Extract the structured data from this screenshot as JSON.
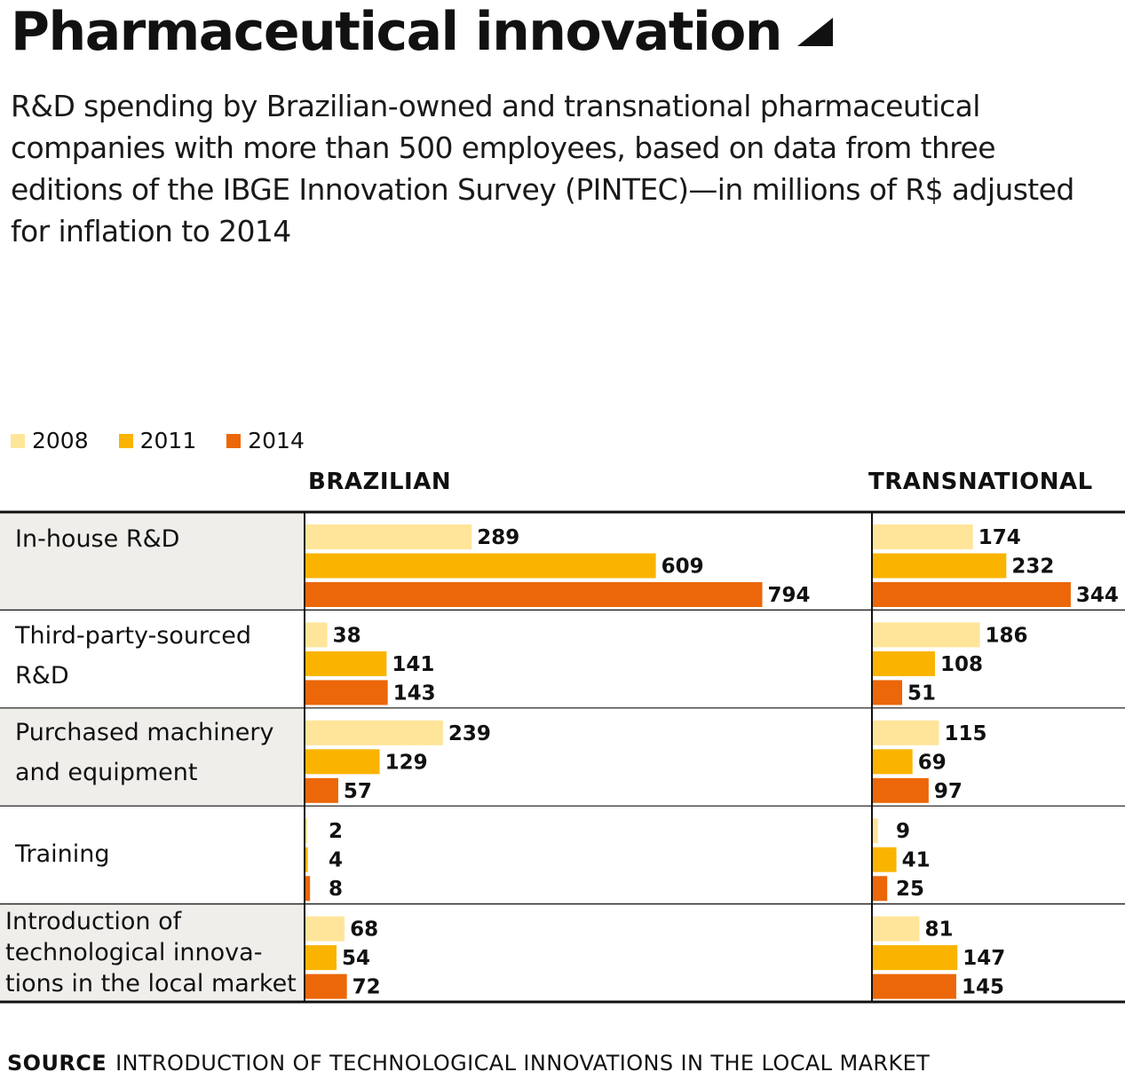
{
  "header": {
    "title": "Pharmaceutical innovation",
    "subtitle": "R&D spending by Brazilian-owned and transnational pharmaceutical companies with more than 500 employees, based on data from three editions of the IBGE Innovation Survey (PINTEC)—in millions of R$ adjusted for inflation to 2014"
  },
  "legend": [
    {
      "label": "2008",
      "color": "#FFE59A"
    },
    {
      "label": "2011",
      "color": "#FAB400"
    },
    {
      "label": "2014",
      "color": "#EB6709"
    }
  ],
  "groups": {
    "brazilian": "BRAZILIAN",
    "transnational": "TRANSNATIONAL"
  },
  "rows": [
    {
      "label": "In-house R&D"
    },
    {
      "label": "Third-party-sourced R&D"
    },
    {
      "label": "Purchased machinery and equipment"
    },
    {
      "label": "Training"
    },
    {
      "label": "Introduction of technological innova- tions in the local market"
    }
  ],
  "chart_data": {
    "type": "bar",
    "orientation": "horizontal",
    "categories": [
      "In-house R&D",
      "Third-party-sourced R&D",
      "Purchased machinery and equipment",
      "Training",
      "Introduction of technological innovations in the local market"
    ],
    "panels": [
      {
        "name": "BRAZILIAN",
        "series": [
          {
            "name": "2008",
            "values": [
              289,
              38,
              239,
              2,
              68
            ]
          },
          {
            "name": "2011",
            "values": [
              609,
              141,
              129,
              4,
              54
            ]
          },
          {
            "name": "2014",
            "values": [
              794,
              143,
              57,
              8,
              72
            ]
          }
        ]
      },
      {
        "name": "TRANSNATIONAL",
        "series": [
          {
            "name": "2008",
            "values": [
              174,
              186,
              115,
              9,
              81
            ]
          },
          {
            "name": "2011",
            "values": [
              232,
              108,
              69,
              41,
              147
            ]
          },
          {
            "name": "2014",
            "values": [
              344,
              51,
              97,
              25,
              145
            ]
          }
        ]
      }
    ],
    "title": "Pharmaceutical innovation",
    "xlabel": "",
    "ylabel": "",
    "legend_position": "top-left",
    "grid": false
  },
  "source": {
    "label": "SOURCE",
    "text": "INTRODUCTION OF TECHNOLOGICAL INNOVATIONS IN THE LOCAL MARKET"
  }
}
